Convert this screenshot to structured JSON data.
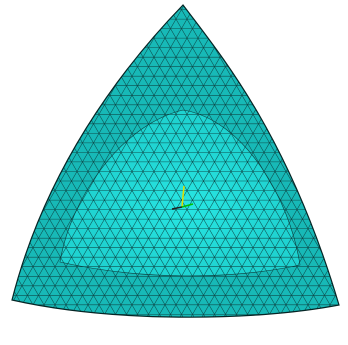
{
  "viewport": {
    "background": "#ffffff",
    "model": {
      "fill_outer": "#17b9b7",
      "fill_inner": "#1fd3d1",
      "fill_center": "#28e6e3",
      "mesh_color": "#0c3a3a",
      "edge_color": "#052525"
    },
    "triad": {
      "icon": "coordinate-triad-icon",
      "axis_colors": [
        "#e0e000",
        "#00c000",
        "#202020"
      ]
    }
  }
}
